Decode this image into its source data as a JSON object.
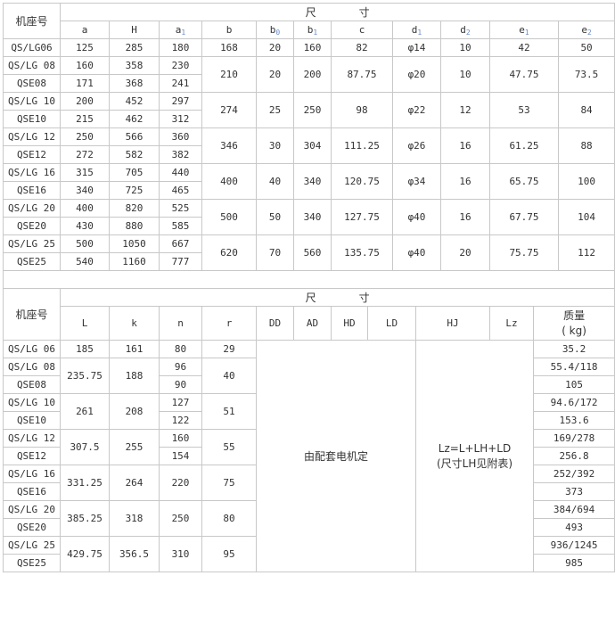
{
  "top": {
    "model_header": "机座号",
    "dim_header": "尺　　　　寸",
    "columns": [
      {
        "base": "a",
        "sub": ""
      },
      {
        "base": "H",
        "sub": ""
      },
      {
        "base": "a",
        "sub": "1"
      },
      {
        "base": "b",
        "sub": ""
      },
      {
        "base": "b",
        "sub": "0"
      },
      {
        "base": "b",
        "sub": "1"
      },
      {
        "base": "c",
        "sub": ""
      },
      {
        "base": "d",
        "sub": "1"
      },
      {
        "base": "d",
        "sub": "2"
      },
      {
        "base": "e",
        "sub": "1"
      },
      {
        "base": "e",
        "sub": "2"
      }
    ],
    "groups": [
      {
        "rows": [
          {
            "model": "QS/LG06",
            "a": "125",
            "H": "285",
            "a1": "180"
          }
        ],
        "shared": [
          "168",
          "20",
          "160",
          "82",
          "φ14",
          "10",
          "42",
          "50"
        ]
      },
      {
        "rows": [
          {
            "model": "QS/LG 08",
            "a": "160",
            "H": "358",
            "a1": "230"
          },
          {
            "model": "QSE08",
            "a": "171",
            "H": "368",
            "a1": "241"
          }
        ],
        "shared": [
          "210",
          "20",
          "200",
          "87.75",
          "φ20",
          "10",
          "47.75",
          "73.5"
        ]
      },
      {
        "rows": [
          {
            "model": "QS/LG 10",
            "a": "200",
            "H": "452",
            "a1": "297"
          },
          {
            "model": "QSE10",
            "a": "215",
            "H": "462",
            "a1": "312"
          }
        ],
        "shared": [
          "274",
          "25",
          "250",
          "98",
          "φ22",
          "12",
          "53",
          "84"
        ]
      },
      {
        "rows": [
          {
            "model": "QS/LG 12",
            "a": "250",
            "H": "566",
            "a1": "360"
          },
          {
            "model": "QSE12",
            "a": "272",
            "H": "582",
            "a1": "382"
          }
        ],
        "shared": [
          "346",
          "30",
          "304",
          "111.25",
          "φ26",
          "16",
          "61.25",
          "88"
        ]
      },
      {
        "rows": [
          {
            "model": "QS/LG 16",
            "a": "315",
            "H": "705",
            "a1": "440"
          },
          {
            "model": "QSE16",
            "a": "340",
            "H": "725",
            "a1": "465"
          }
        ],
        "shared": [
          "400",
          "40",
          "340",
          "120.75",
          "φ34",
          "16",
          "65.75",
          "100"
        ]
      },
      {
        "rows": [
          {
            "model": "QS/LG 20",
            "a": "400",
            "H": "820",
            "a1": "525"
          },
          {
            "model": "QSE20",
            "a": "430",
            "H": "880",
            "a1": "585"
          }
        ],
        "shared": [
          "500",
          "50",
          "340",
          "127.75",
          "φ40",
          "16",
          "67.75",
          "104"
        ]
      },
      {
        "rows": [
          {
            "model": "QS/LG 25",
            "a": "500",
            "H": "1050",
            "a1": "667"
          },
          {
            "model": "QSE25",
            "a": "540",
            "H": "1160",
            "a1": "777"
          }
        ],
        "shared": [
          "620",
          "70",
          "560",
          "135.75",
          "φ40",
          "20",
          "75.75",
          "112"
        ]
      }
    ]
  },
  "bottom": {
    "model_header": "机座号",
    "dim_header": "尺　　　　寸",
    "columns": [
      "L",
      "k",
      "n",
      "r",
      "DD",
      "AD",
      "HD",
      "LD",
      "HJ",
      "Lz"
    ],
    "mass_header": "质量\n( kg)",
    "motor_note": "由配套电机定",
    "lz_note": "Lz=L+LH+LD\n(尺寸LH见附表)",
    "groups": [
      {
        "models": [
          "QS/LG 06"
        ],
        "L": "185",
        "k": "161",
        "n": [
          "80"
        ],
        "r": "29",
        "mass": [
          "35.2"
        ]
      },
      {
        "models": [
          "QS/LG 08",
          "QSE08"
        ],
        "L": "235.75",
        "k": "188",
        "n": [
          "96",
          "90"
        ],
        "r": "40",
        "mass": [
          "55.4/118",
          "105"
        ]
      },
      {
        "models": [
          "QS/LG 10",
          "QSE10"
        ],
        "L": "261",
        "k": "208",
        "n": [
          "127",
          "122"
        ],
        "r": "51",
        "mass": [
          "94.6/172",
          "153.6"
        ]
      },
      {
        "models": [
          "QS/LG 12",
          "QSE12"
        ],
        "L": "307.5",
        "k": "255",
        "n": [
          "160",
          "154"
        ],
        "r": "55",
        "mass": [
          "169/278",
          "256.8"
        ]
      },
      {
        "models": [
          "QS/LG 16",
          "QSE16"
        ],
        "L": "331.25",
        "k": "264",
        "n": [
          "220"
        ],
        "r": "75",
        "mass": [
          "252/392",
          "373"
        ]
      },
      {
        "models": [
          "QS/LG 20",
          "QSE20"
        ],
        "L": "385.25",
        "k": "318",
        "n": [
          "250"
        ],
        "r": "80",
        "mass": [
          "384/694",
          "493"
        ]
      },
      {
        "models": [
          "QS/LG 25",
          "QSE25"
        ],
        "L": "429.75",
        "k": "356.5",
        "n": [
          "310"
        ],
        "r": "95",
        "mass": [
          "936/1245",
          "985"
        ]
      }
    ]
  }
}
